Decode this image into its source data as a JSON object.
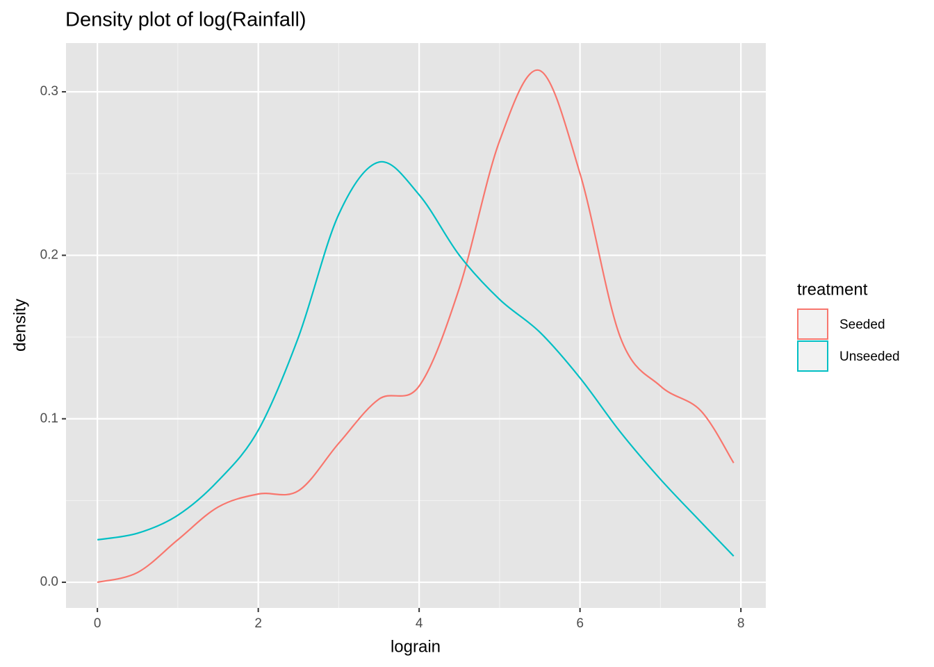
{
  "chart_data": {
    "type": "line",
    "title": "Density plot of log(Rainfall)",
    "x_label": "lograin",
    "y_label": "density",
    "x": [
      0,
      0.5,
      1,
      1.5,
      2,
      2.5,
      3,
      3.5,
      4,
      4.5,
      5,
      5.5,
      6,
      6.5,
      7,
      7.5,
      7.91
    ],
    "series": [
      {
        "name": "Seeded",
        "color": "#F8766D",
        "values": [
          0.0,
          0.006,
          0.026,
          0.046,
          0.054,
          0.056,
          0.085,
          0.112,
          0.12,
          0.18,
          0.27,
          0.313,
          0.25,
          0.15,
          0.12,
          0.105,
          0.073
        ]
      },
      {
        "name": "Unseeded",
        "color": "#00BFC4",
        "values": [
          0.026,
          0.03,
          0.041,
          0.062,
          0.093,
          0.15,
          0.225,
          0.257,
          0.237,
          0.2,
          0.173,
          0.153,
          0.125,
          0.092,
          0.063,
          0.037,
          0.016
        ]
      }
    ],
    "xlim": [
      -0.39,
      8.31
    ],
    "ylim": [
      -0.0157,
      0.3298
    ],
    "xticks": [
      0,
      2,
      4,
      6,
      8
    ],
    "yticks": [
      {
        "value": 0,
        "label": "0.0"
      },
      0.1,
      0.2,
      0.3
    ],
    "x_minor_ticks": [
      1,
      3,
      5,
      7
    ],
    "y_minor_ticks": [
      0.05,
      0.15,
      0.25
    ],
    "grid": true,
    "legend_title": "treatment",
    "legend_position": "right"
  }
}
